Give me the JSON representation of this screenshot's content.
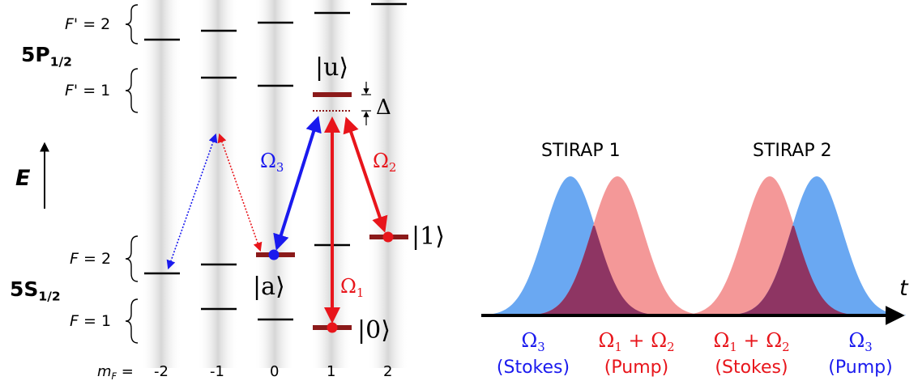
{
  "levels": {
    "excited_label": "5P",
    "excited_sub": "1/2",
    "ground_label": "5S",
    "ground_sub": "1/2",
    "fp2": {
      "var": "F'",
      "val": "= 2"
    },
    "fp1": {
      "var": "F'",
      "val": "= 1"
    },
    "f2": {
      "var": "F",
      "val": "= 2"
    },
    "f1": {
      "var": "F",
      "val": "= 1"
    },
    "energy_axis": "E",
    "mf_label": "m",
    "mf_sub": "F",
    "mf_eq": "=",
    "mf_values": [
      "-2",
      "-1",
      "0",
      "1",
      "2"
    ]
  },
  "states": {
    "u": "|u⟩",
    "a": "|a⟩",
    "one": "|1⟩",
    "zero": "|0⟩",
    "detuning": "Δ"
  },
  "couplings": {
    "omega3": {
      "sym": "Ω",
      "sub": "3",
      "color": "#1a1aee"
    },
    "omega2": {
      "sym": "Ω",
      "sub": "2",
      "color": "#e8151b"
    },
    "omega1": {
      "sym": "Ω",
      "sub": "1",
      "color": "#e8151b"
    }
  },
  "pulse_chart": {
    "title_1": "STIRAP 1",
    "title_2": "STIRAP 2",
    "time_axis": "t",
    "stokes_color": "#6aa8f2",
    "pump_color": "#f49898",
    "overlap_color": "#8e3563",
    "labels": [
      {
        "sym": "Ω",
        "sub": "3",
        "plus": "",
        "sym2": "",
        "sub2": "",
        "role": "(Stokes)",
        "color": "#1a1aee"
      },
      {
        "sym": "Ω",
        "sub": "1",
        "plus": " + ",
        "sym2": "Ω",
        "sub2": "2",
        "role": "(Pump)",
        "color": "#e8151b"
      },
      {
        "sym": "Ω",
        "sub": "1",
        "plus": " + ",
        "sym2": "Ω",
        "sub2": "2",
        "role": "(Stokes)",
        "color": "#e8151b"
      },
      {
        "sym": "Ω",
        "sub": "3",
        "plus": "",
        "sym2": "",
        "sub2": "",
        "role": "(Pump)",
        "color": "#1a1aee"
      }
    ]
  }
}
